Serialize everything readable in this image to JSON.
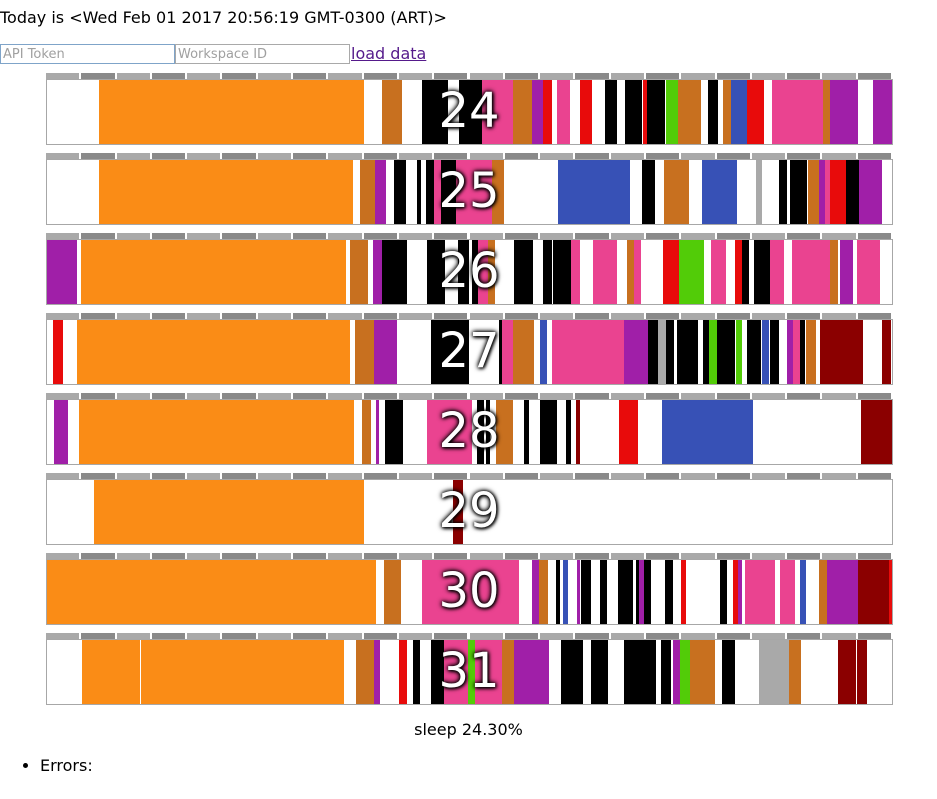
{
  "header": {
    "today_text": "Today is <Wed Feb 01 2017 20:56:19 GMT-0300 (ART)>",
    "api_token_placeholder": "API Token",
    "workspace_placeholder": "Workspace ID",
    "load_label": "load data"
  },
  "palette": {
    "orange": "#fa8c16",
    "brown": "#c8701f",
    "black": "#000000",
    "pink": "#ea4390",
    "purple": "#a01fa8",
    "red": "#e80b0b",
    "green": "#52cc08",
    "blue": "#3751b6",
    "darkred": "#8b0000",
    "gray": "#a9a9a9",
    "ruler_a": "#a9a9a9",
    "ruler_b": "#8a8a8a"
  },
  "days": [
    {
      "label": "24",
      "segments": [
        [
          6.2,
          37.5,
          "orange"
        ],
        [
          39.7,
          42.0,
          "brown"
        ],
        [
          44.4,
          47.4,
          "black"
        ],
        [
          48.8,
          51.5,
          "black"
        ],
        [
          51.5,
          55.2,
          "pink"
        ],
        [
          55.2,
          57.4,
          "brown"
        ],
        [
          57.4,
          58.7,
          "purple"
        ],
        [
          58.7,
          59.8,
          "red"
        ],
        [
          60.4,
          61.9,
          "pink"
        ],
        [
          63.1,
          64.5,
          "red"
        ],
        [
          66.0,
          67.5,
          "black"
        ],
        [
          68.4,
          70.4,
          "black"
        ],
        [
          70.5,
          71.0,
          "red"
        ],
        [
          71.0,
          73.1,
          "black"
        ],
        [
          73.3,
          74.7,
          "green"
        ],
        [
          74.7,
          77.4,
          "brown"
        ],
        [
          78.2,
          79.4,
          "black"
        ],
        [
          80.0,
          80.9,
          "brown"
        ],
        [
          80.9,
          82.8,
          "blue"
        ],
        [
          82.8,
          84.9,
          "red"
        ],
        [
          85.8,
          91.8,
          "pink"
        ],
        [
          91.8,
          92.7,
          "brown"
        ],
        [
          92.7,
          96.0,
          "purple"
        ],
        [
          97.8,
          100,
          "purple"
        ]
      ]
    },
    {
      "label": "25",
      "segments": [
        [
          6.2,
          36.2,
          "orange"
        ],
        [
          37.0,
          38.8,
          "brown"
        ],
        [
          38.8,
          40.1,
          "purple"
        ],
        [
          41.1,
          42.5,
          "black"
        ],
        [
          43.8,
          44.3,
          "black"
        ],
        [
          44.9,
          45.8,
          "black"
        ],
        [
          45.8,
          46.6,
          "pink"
        ],
        [
          46.6,
          48.4,
          "black"
        ],
        [
          48.4,
          52.7,
          "pink"
        ],
        [
          52.7,
          54.1,
          "brown"
        ],
        [
          60.5,
          69.0,
          "blue"
        ],
        [
          70.4,
          71.9,
          "black"
        ],
        [
          73.0,
          76.0,
          "brown"
        ],
        [
          77.5,
          81.6,
          "blue"
        ],
        [
          83.9,
          84.6,
          "gray"
        ],
        [
          86.6,
          87.6,
          "black"
        ],
        [
          87.9,
          90.0,
          "black"
        ],
        [
          90.0,
          91.4,
          "brown"
        ],
        [
          91.4,
          92.1,
          "purple"
        ],
        [
          92.1,
          92.7,
          "pink"
        ],
        [
          92.7,
          93.3,
          "red"
        ],
        [
          93.3,
          94.6,
          "red"
        ],
        [
          94.6,
          96.1,
          "black"
        ],
        [
          96.1,
          98.8,
          "purple"
        ]
      ]
    },
    {
      "label": "26",
      "segments": [
        [
          0,
          3.5,
          "purple"
        ],
        [
          4.0,
          35.4,
          "orange"
        ],
        [
          35.9,
          38.0,
          "brown"
        ],
        [
          38.6,
          39.6,
          "purple"
        ],
        [
          39.6,
          42.6,
          "black"
        ],
        [
          45.0,
          47.1,
          "black"
        ],
        [
          48.6,
          50.0,
          "black"
        ],
        [
          50.3,
          51.0,
          "black"
        ],
        [
          51.0,
          52.2,
          "pink"
        ],
        [
          52.2,
          53.0,
          "brown"
        ],
        [
          55.3,
          57.5,
          "black"
        ],
        [
          58.7,
          59.8,
          "black"
        ],
        [
          59.9,
          62.0,
          "black"
        ],
        [
          62.0,
          63.1,
          "pink"
        ],
        [
          64.6,
          67.4,
          "pink"
        ],
        [
          68.6,
          69.5,
          "brown"
        ],
        [
          69.5,
          70.3,
          "pink"
        ],
        [
          72.9,
          74.8,
          "red"
        ],
        [
          74.8,
          77.8,
          "green"
        ],
        [
          78.6,
          80.3,
          "pink"
        ],
        [
          81.4,
          82.2,
          "red"
        ],
        [
          82.2,
          83.1,
          "black"
        ],
        [
          83.7,
          85.6,
          "black"
        ],
        [
          85.6,
          86.4,
          "red"
        ],
        [
          85.6,
          87.2,
          "pink"
        ],
        [
          88.2,
          91.3,
          "pink"
        ],
        [
          91.3,
          93.6,
          "pink"
        ],
        [
          92.7,
          93.6,
          "brown"
        ],
        [
          93.8,
          95.4,
          "purple"
        ],
        [
          95.8,
          98.6,
          "pink"
        ]
      ]
    },
    {
      "label": "27",
      "segments": [
        [
          0.7,
          1.9,
          "red"
        ],
        [
          3.5,
          35.9,
          "orange"
        ],
        [
          36.4,
          38.7,
          "brown"
        ],
        [
          38.7,
          41.4,
          "purple"
        ],
        [
          45.4,
          49.3,
          "black"
        ],
        [
          49.3,
          50.0,
          "black"
        ],
        [
          53.5,
          53.9,
          "black"
        ],
        [
          53.9,
          55.2,
          "pink"
        ],
        [
          55.2,
          57.6,
          "brown"
        ],
        [
          58.4,
          59.2,
          "blue"
        ],
        [
          59.8,
          68.3,
          "pink"
        ],
        [
          68.3,
          71.1,
          "purple"
        ],
        [
          71.1,
          72.3,
          "black"
        ],
        [
          72.3,
          73.2,
          "gray"
        ],
        [
          73.2,
          74.2,
          "black"
        ],
        [
          74.5,
          77.0,
          "black"
        ],
        [
          77.6,
          78.4,
          "black"
        ],
        [
          78.4,
          79.3,
          "green"
        ],
        [
          79.3,
          80.6,
          "black"
        ],
        [
          80.6,
          81.4,
          "black"
        ],
        [
          81.5,
          82.2,
          "green"
        ],
        [
          82.8,
          83.5,
          "black"
        ],
        [
          83.5,
          84.5,
          "black"
        ],
        [
          84.6,
          85.5,
          "blue"
        ],
        [
          85.6,
          86.6,
          "black"
        ],
        [
          87.6,
          88.3,
          "purple"
        ],
        [
          88.3,
          89.1,
          "pink"
        ],
        [
          89.1,
          89.7,
          "black"
        ],
        [
          89.8,
          91.0,
          "brown"
        ],
        [
          91.5,
          96.6,
          "darkred"
        ],
        [
          98.8,
          99.9,
          "darkred"
        ]
      ]
    },
    {
      "label": "28",
      "segments": [
        [
          0.8,
          2.5,
          "purple"
        ],
        [
          3.8,
          36.3,
          "orange"
        ],
        [
          37.3,
          38.4,
          "brown"
        ],
        [
          38.9,
          39.3,
          "purple"
        ],
        [
          40.0,
          42.1,
          "black"
        ],
        [
          45.0,
          50.3,
          "pink"
        ],
        [
          50.9,
          51.7,
          "black"
        ],
        [
          51.9,
          52.4,
          "black"
        ],
        [
          53.1,
          55.1,
          "brown"
        ],
        [
          56.5,
          57.0,
          "black"
        ],
        [
          58.4,
          60.4,
          "black"
        ],
        [
          61.4,
          62.0,
          "black"
        ],
        [
          62.6,
          63.1,
          "darkred"
        ],
        [
          67.7,
          70.0,
          "red"
        ],
        [
          72.8,
          83.6,
          "blue"
        ],
        [
          96.3,
          100,
          "darkred"
        ]
      ]
    },
    {
      "label": "29",
      "segments": [
        [
          5.6,
          37.5,
          "orange"
        ],
        [
          48.0,
          49.2,
          "darkred"
        ]
      ]
    },
    {
      "label": "30",
      "segments": [
        [
          0,
          38.9,
          "orange"
        ],
        [
          39.9,
          41.9,
          "brown"
        ],
        [
          44.4,
          55.8,
          "pink"
        ],
        [
          57.4,
          58.2,
          "purple"
        ],
        [
          58.2,
          59.3,
          "brown"
        ],
        [
          60.2,
          60.7,
          "black"
        ],
        [
          61.1,
          61.7,
          "blue"
        ],
        [
          62.7,
          63.1,
          "purple"
        ],
        [
          63.2,
          64.4,
          "black"
        ],
        [
          65.5,
          66.3,
          "black"
        ],
        [
          67.6,
          69.3,
          "black"
        ],
        [
          69.7,
          70.1,
          "black"
        ],
        [
          70.1,
          70.6,
          "purple"
        ],
        [
          70.6,
          71.5,
          "black"
        ],
        [
          73.1,
          74.1,
          "black"
        ],
        [
          75.0,
          75.6,
          "red"
        ],
        [
          79.7,
          80.5,
          "black"
        ],
        [
          81.2,
          82.3,
          "red"
        ],
        [
          81.8,
          82.3,
          "red"
        ],
        [
          81.8,
          82.3,
          "black"
        ],
        [
          81.8,
          82.2,
          "purple"
        ],
        [
          82.6,
          86.2,
          "pink"
        ],
        [
          86.8,
          88.5,
          "pink"
        ],
        [
          89.1,
          89.8,
          "blue"
        ],
        [
          91.4,
          92.3,
          "brown"
        ],
        [
          92.3,
          93.6,
          "purple"
        ],
        [
          92.3,
          96.0,
          "purple"
        ],
        [
          96.0,
          98.3,
          "darkred"
        ],
        [
          98.3,
          99.6,
          "darkred"
        ],
        [
          99.6,
          100,
          "red"
        ]
      ]
    },
    {
      "label": "31",
      "segments": [
        [
          4.2,
          11.0,
          "orange"
        ],
        [
          11.1,
          35.2,
          "orange"
        ],
        [
          36.6,
          38.7,
          "brown"
        ],
        [
          38.7,
          39.4,
          "purple"
        ],
        [
          41.7,
          42.6,
          "red"
        ],
        [
          43.3,
          44.2,
          "black"
        ],
        [
          45.4,
          47.0,
          "black"
        ],
        [
          47.0,
          49.4,
          "pink"
        ],
        [
          49.4,
          49.8,
          "pink"
        ],
        [
          49.8,
          50.6,
          "green"
        ],
        [
          50.6,
          53.8,
          "pink"
        ],
        [
          53.8,
          55.3,
          "brown"
        ],
        [
          55.3,
          59.4,
          "purple"
        ],
        [
          60.8,
          63.4,
          "black"
        ],
        [
          64.4,
          66.4,
          "black"
        ],
        [
          68.3,
          72.1,
          "black"
        ],
        [
          72.7,
          73.9,
          "black"
        ],
        [
          74.1,
          74.9,
          "purple"
        ],
        [
          74.9,
          76.1,
          "green"
        ],
        [
          76.1,
          79.1,
          "brown"
        ],
        [
          79.9,
          81.4,
          "black"
        ],
        [
          84.3,
          86.4,
          "gray"
        ],
        [
          86.4,
          87.8,
          "gray"
        ],
        [
          87.8,
          89.2,
          "brown"
        ],
        [
          93.6,
          95.7,
          "darkred"
        ],
        [
          95.8,
          97.1,
          "darkred"
        ]
      ]
    }
  ],
  "summary_text": "sleep 24.30%",
  "errors_label": "Errors:"
}
